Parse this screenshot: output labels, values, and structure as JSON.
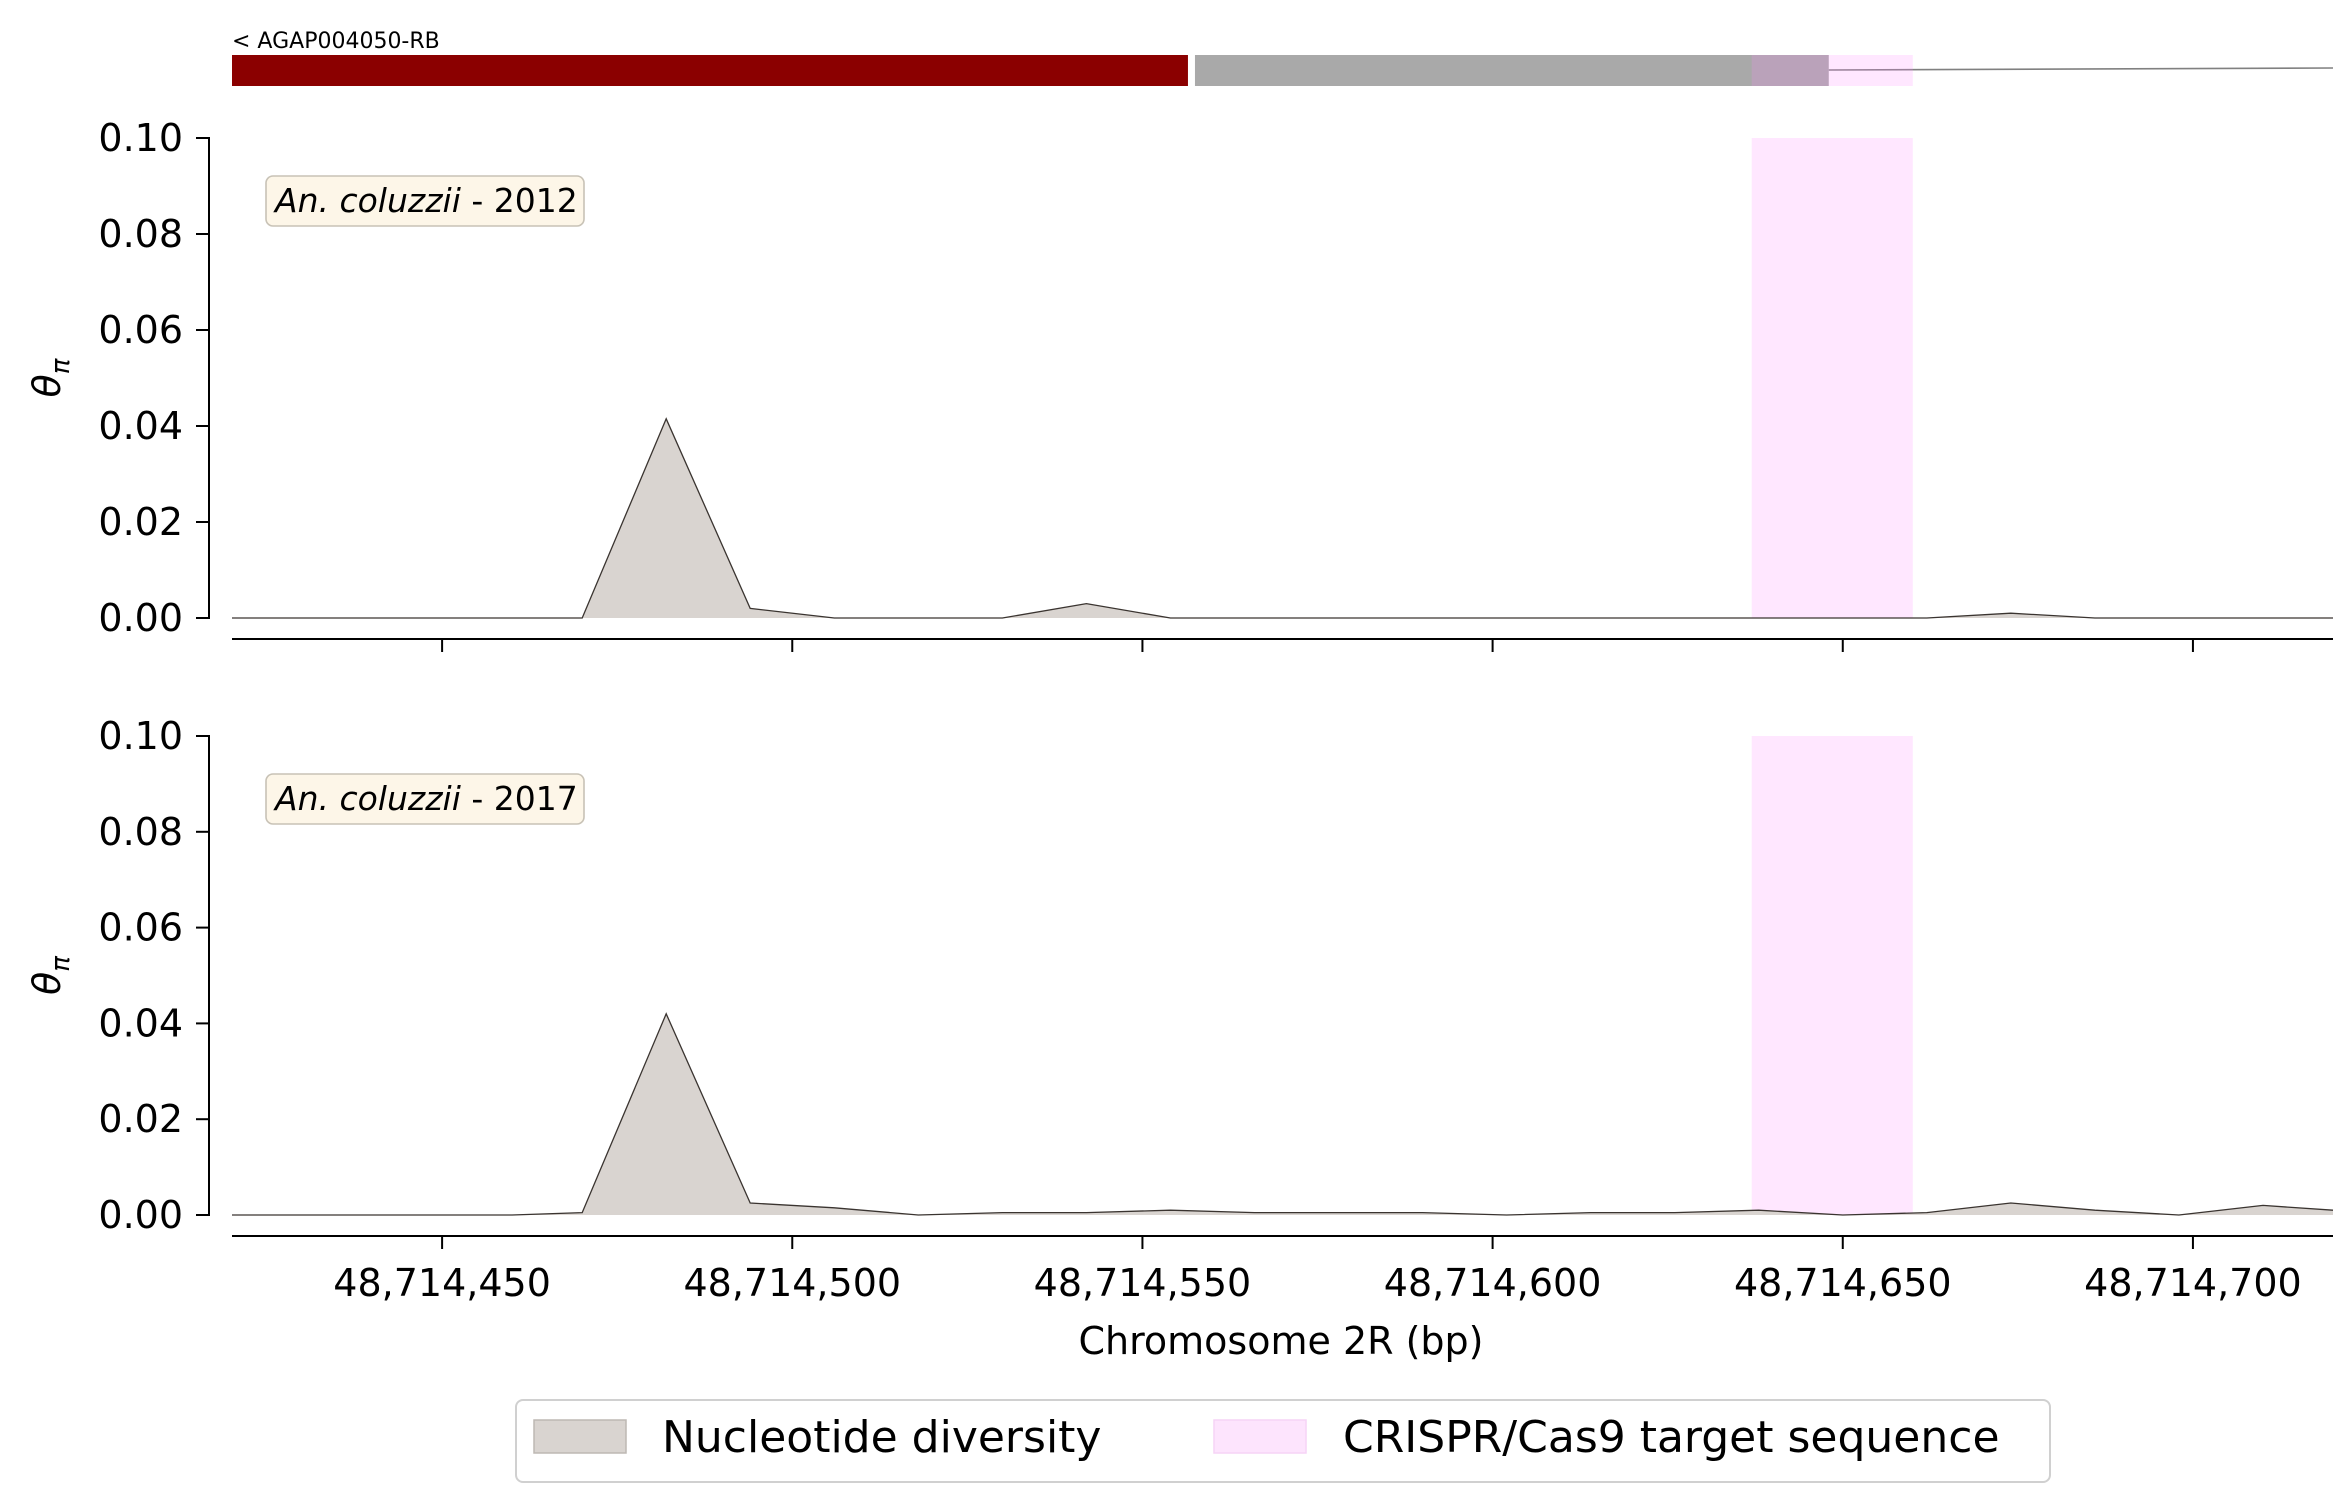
{
  "chart_data": {
    "type": "area",
    "xlabel": "Chromosome 2R (bp)",
    "ylabel": "θπ",
    "xlim": [
      48714420,
      48714720
    ],
    "ylim": [
      0,
      0.1
    ],
    "xticks": [
      48714450,
      48714500,
      48714550,
      48714600,
      48714650,
      48714700
    ],
    "xtick_labels": [
      "48,714,450",
      "48,714,500",
      "48,714,550",
      "48,714,600",
      "48,714,650",
      "48,714,700"
    ],
    "yticks": [
      0,
      0.02,
      0.04,
      0.06,
      0.08,
      0.1
    ],
    "ytick_labels": [
      "0.00",
      "0.02",
      "0.04",
      "0.06",
      "0.08",
      "0.10"
    ],
    "gene": {
      "label": "< AGAP004050-RB",
      "segments": [
        {
          "kind": "cds",
          "start": 48714420,
          "end": 48714556.5,
          "color": "#8b0000"
        },
        {
          "kind": "utr",
          "start": 48714557.5,
          "end": 48714648,
          "color": "#a9a9a9"
        },
        {
          "kind": "intron",
          "start": 48714648,
          "end": 48714720,
          "color": "#808080"
        }
      ]
    },
    "target_region": {
      "start": 48714637,
      "end": 48714660,
      "color": "#ff88ff"
    },
    "legend": [
      {
        "label": "Nucleotide diversity",
        "color": "#d9d4d0"
      },
      {
        "label": "CRISPR/Cas9 target sequence",
        "color": "#fde4fd"
      }
    ],
    "panels": [
      {
        "species": "An. coluzzii",
        "year": " - 2012",
        "x": [
          48714420,
          48714470,
          48714482,
          48714494,
          48714506,
          48714518,
          48714530,
          48714542,
          48714554,
          48714566,
          48714578,
          48714590,
          48714602,
          48714614,
          48714626,
          48714638,
          48714650,
          48714662,
          48714674,
          48714686,
          48714698,
          48714710,
          48714720
        ],
        "y": [
          0,
          0,
          0.0415,
          0.002,
          0,
          0,
          0,
          0.003,
          0,
          0,
          0,
          0,
          0,
          0,
          0,
          0,
          0,
          0,
          0.001,
          0,
          0,
          0,
          0
        ]
      },
      {
        "species": "An. coluzzii",
        "year": " - 2017",
        "x": [
          48714420,
          48714460,
          48714470,
          48714482,
          48714494,
          48714506,
          48714518,
          48714530,
          48714542,
          48714554,
          48714566,
          48714578,
          48714590,
          48714602,
          48714614,
          48714626,
          48714638,
          48714650,
          48714662,
          48714674,
          48714686,
          48714698,
          48714710,
          48714720
        ],
        "y": [
          0,
          0,
          0.0005,
          0.042,
          0.0025,
          0.0015,
          0,
          0.0005,
          0.0005,
          0.001,
          0.0005,
          0.0005,
          0.0005,
          0,
          0.0005,
          0.0005,
          0.001,
          0,
          0.0005,
          0.0025,
          0.001,
          0,
          0.002,
          0.001
        ]
      }
    ]
  }
}
